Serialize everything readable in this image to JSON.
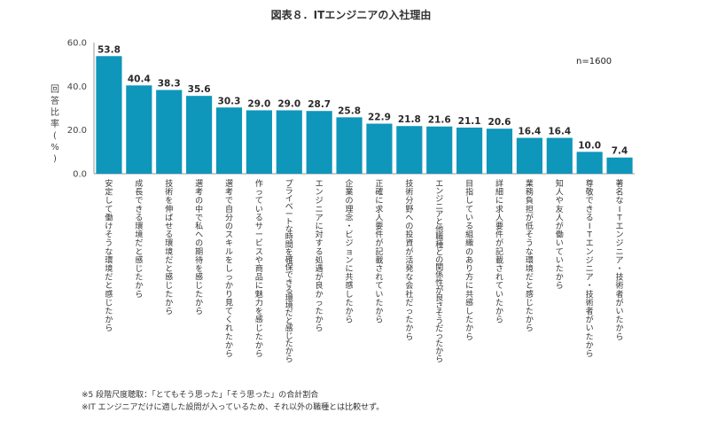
{
  "title": "図表８．ITエンジニアの入社理由",
  "sample": "n=1600",
  "notes": [
    "※5 段階尺度聴取：「とてもそう思った」「そう思った」の合計割合",
    "※IT エンジニアだけに適した設問が入っているため、それ以外の職種とは比較せず。"
  ],
  "colors": {
    "bar": "#0e96bb",
    "axis": "#9a9a9a",
    "grid": "#d9d9d9"
  },
  "chart_data": {
    "type": "bar",
    "ylabel": "回答比率(%)",
    "ylim": [
      0,
      60
    ],
    "yticks": [
      "0.0",
      "20.0",
      "40.0",
      "60.0"
    ],
    "grid": false,
    "categories": [
      "安定して働けそうな環境だと感じたから",
      "成長できる環境だと感じたから",
      "技術を伸ばせる環境だと感じたから",
      "選考の中で私への期待を感じたから",
      "選考で自分のスキルをしっかり見てくれたから",
      "作っているサービスや商品に魅力を感じたから",
      "プライベートな時間を確保できる環境だと感じたから",
      "エンジニアに対する処遇が良かったから",
      "企業の理念・ビジョンに共感したから",
      "正確に求人要件が記載されていたから",
      "技術分野への投資が活発な会社だったから",
      "エンジニアと他職種との関係性が良さそうだったから",
      "目指している組織のあり方に共感したから",
      "詳細に求人要件が記載されていたから",
      "業務負担が低そうな環境だと感じたから",
      "知人や友人が働いていたから",
      "尊敬できるITエンジニア・技術者がいたから",
      "著名なITエンジニア・技術者がいたから"
    ],
    "values": [
      53.8,
      40.4,
      38.3,
      35.6,
      30.3,
      29.0,
      29.0,
      28.7,
      25.8,
      22.9,
      21.8,
      21.6,
      21.1,
      20.6,
      16.4,
      16.4,
      10.0,
      7.4
    ],
    "value_labels": [
      "53.8",
      "40.4",
      "38.3",
      "35.6",
      "30.3",
      "29.0",
      "29.0",
      "28.7",
      "25.8",
      "22.9",
      "21.8",
      "21.6",
      "21.1",
      "20.6",
      "16.4",
      "16.4",
      "10.0",
      "7.4"
    ]
  }
}
